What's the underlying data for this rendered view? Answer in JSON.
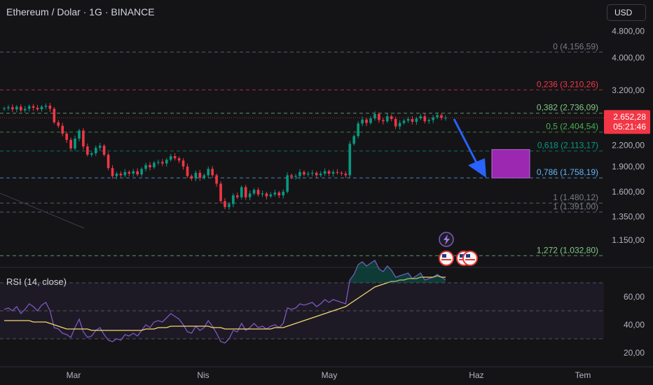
{
  "header": {
    "title": "Ethereum / Dolar · 1G · BINANCE",
    "currency_button": "USD"
  },
  "price_axis": {
    "ticks": [
      {
        "label": "4.800,00",
        "value": 4800
      },
      {
        "label": "4.000,00",
        "value": 4000
      },
      {
        "label": "3.200,00",
        "value": 3200
      },
      {
        "label": "2.200,00",
        "value": 2200
      },
      {
        "label": "1.900,00",
        "value": 1900
      },
      {
        "label": "1.600,00",
        "value": 1600
      },
      {
        "label": "1.350,00",
        "value": 1350
      },
      {
        "label": "1.150,00",
        "value": 1150
      }
    ],
    "current_price": "2.652,28",
    "countdown": "05:21:46",
    "current_color": "#f23645"
  },
  "fib_levels": [
    {
      "label": "0 (4.156,59)",
      "value": 4156.59,
      "color": "#787b86"
    },
    {
      "label": "0,236 (3.210,26)",
      "value": 3210.26,
      "color": "#f23645"
    },
    {
      "label": "0,382 (2.736,09)",
      "value": 2736.09,
      "color": "#81c784"
    },
    {
      "label": "0,5 (2.404,54)",
      "value": 2404.54,
      "color": "#4caf50"
    },
    {
      "label": "0,618 (2.113,17)",
      "value": 2113.17,
      "color": "#089981"
    },
    {
      "label": "0,786 (1.758,19)",
      "value": 1758.19,
      "color": "#64b5f6"
    },
    {
      "label": "1 (1.480,12)",
      "value": 1480.12,
      "color": "#787b86"
    },
    {
      "label": "1 (1.391,00)",
      "value": 1391.0,
      "color": "#787b86"
    },
    {
      "label": "1,272 (1.032,80)",
      "value": 1032.8,
      "color": "#81c784"
    }
  ],
  "rsi": {
    "title": "RSI (14, close)",
    "ticks": [
      {
        "label": "60,00",
        "value": 60
      },
      {
        "label": "40,00",
        "value": 40
      },
      {
        "label": "20,00",
        "value": 20
      }
    ],
    "band_upper": 70,
    "band_lower": 30,
    "line_color": "#7e57c2",
    "ma_color": "#f5d56f"
  },
  "time_axis": {
    "labels": [
      "Mar",
      "Nis",
      "May",
      "Haz",
      "Tem"
    ]
  },
  "colors": {
    "up": "#089981",
    "down": "#f23645",
    "accent": "#2962ff",
    "target_box": "#9c27b0"
  },
  "chart_data": {
    "type": "candlestick",
    "series": [
      {
        "name": "price",
        "close": [
          2830,
          2850,
          2810,
          2860,
          2790,
          2820,
          2870,
          2840,
          2810,
          2860,
          2880,
          2820,
          2570,
          2510,
          2380,
          2280,
          2150,
          2300,
          2430,
          2180,
          2060,
          2080,
          2160,
          2190,
          2060,
          1880,
          1780,
          1810,
          1790,
          1830,
          1810,
          1840,
          1800,
          1870,
          1920,
          1890,
          1950,
          1960,
          1940,
          1990,
          2040,
          2010,
          1980,
          1900,
          1780,
          1750,
          1820,
          1760,
          1790,
          1870,
          1790,
          1690,
          1500,
          1440,
          1470,
          1560,
          1540,
          1650,
          1540,
          1580,
          1620,
          1570,
          1580,
          1550,
          1570,
          1590,
          1560,
          1600,
          1790,
          1770,
          1780,
          1830,
          1800,
          1810,
          1820,
          1790,
          1810,
          1840,
          1810,
          1830,
          1820,
          1810,
          1790,
          2220,
          2340,
          2550,
          2620,
          2560,
          2640,
          2720,
          2610,
          2590,
          2680,
          2630,
          2500,
          2560,
          2600,
          2630,
          2580,
          2640,
          2680,
          2590,
          2610,
          2660,
          2700,
          2650,
          2652.28
        ]
      }
    ],
    "rsi_values": [
      51,
      52,
      50,
      53,
      48,
      51,
      55,
      53,
      50,
      54,
      56,
      50,
      38,
      37,
      34,
      33,
      31,
      38,
      44,
      35,
      31,
      32,
      36,
      38,
      33,
      29,
      28,
      30,
      29,
      33,
      32,
      34,
      32,
      36,
      40,
      38,
      42,
      43,
      42,
      45,
      48,
      46,
      44,
      40,
      35,
      34,
      39,
      36,
      38,
      43,
      39,
      34,
      28,
      27,
      30,
      36,
      35,
      41,
      36,
      38,
      41,
      38,
      39,
      37,
      39,
      40,
      38,
      41,
      52,
      51,
      52,
      55,
      54,
      55,
      56,
      53,
      55,
      58,
      56,
      58,
      57,
      56,
      55,
      72,
      76,
      83,
      85,
      82,
      84,
      86,
      80,
      78,
      82,
      79,
      74,
      75,
      76,
      77,
      73,
      75,
      77,
      72,
      73,
      74,
      76,
      74,
      72
    ],
    "rsi_ma": [
      43,
      43,
      43,
      43,
      43,
      43,
      43,
      42,
      42,
      42,
      42,
      41,
      40,
      39,
      38,
      37,
      37,
      37,
      37,
      37,
      37,
      36,
      36,
      36,
      36,
      36,
      36,
      36,
      36,
      36,
      36,
      36,
      36,
      36,
      37,
      37,
      37,
      38,
      38,
      38,
      39,
      39,
      39,
      39,
      39,
      39,
      39,
      39,
      39,
      39,
      38,
      38,
      38,
      37,
      37,
      37,
      37,
      37,
      37,
      37,
      37,
      37,
      37,
      37,
      37,
      38,
      38,
      38,
      39,
      40,
      41,
      42,
      43,
      44,
      45,
      46,
      47,
      48,
      49,
      50,
      51,
      52,
      53,
      55,
      57,
      59,
      61,
      63,
      65,
      67,
      68,
      69,
      70,
      71,
      71,
      72,
      72,
      73,
      73,
      73,
      74,
      74,
      74,
      74,
      75,
      74,
      74
    ],
    "ylim": [
      1000,
      4900
    ],
    "rsi_ylim": [
      10,
      80
    ],
    "x_labels": [
      "Mar",
      "Nis",
      "May",
      "Haz",
      "Tem"
    ]
  }
}
